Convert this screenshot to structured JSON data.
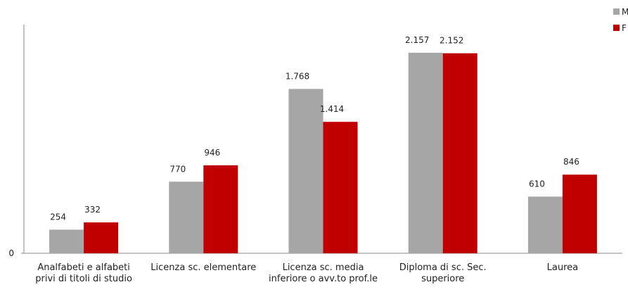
{
  "chart_data": {
    "type": "bar",
    "categories": [
      "Analfabeti e alfabeti privi di titoli di studio",
      "Licenza sc. elementare",
      "Licenza sc. media inferiore o avv.to prof.le",
      "Diploma di sc. Sec. superiore",
      "Laurea"
    ],
    "series": [
      {
        "name": "M",
        "color": "#a6a6a6",
        "values": [
          254,
          770,
          1768,
          2157,
          610
        ],
        "value_labels": [
          "254",
          "770",
          "1.768",
          "2.157",
          "610"
        ]
      },
      {
        "name": "F",
        "color": "#c00000",
        "values": [
          332,
          946,
          1414,
          2152,
          846
        ],
        "value_labels": [
          "332",
          "946",
          "1.414",
          "2.152",
          "846"
        ]
      }
    ],
    "ylim": [
      0,
      2460
    ],
    "yticks": [
      0
    ],
    "grid": false,
    "legend": "top-right"
  }
}
